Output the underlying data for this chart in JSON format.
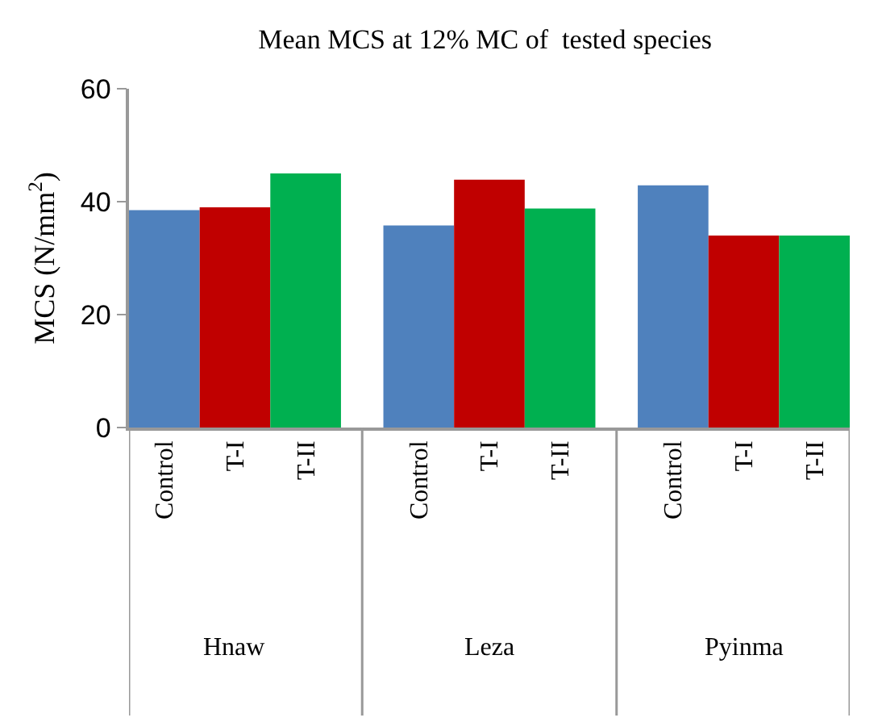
{
  "chart_data": {
    "type": "bar",
    "title": "Mean MCS at 12% MC of  tested species",
    "ylabel": "MCS (N/mm$^{2}$)",
    "categories": [
      "Control",
      "T-I",
      "T-II",
      "Control",
      "T-I",
      "T-II",
      "Control",
      "T-I",
      "T-II"
    ],
    "annotations": [
      "Hnaw",
      "Leza",
      "Pyinma"
    ],
    "values": [
      38.5,
      39,
      45,
      35.8,
      43.9,
      38.8,
      42.9,
      34,
      34
    ],
    "colors": [
      "#4f81bd",
      "#c00000",
      "#00b050",
      "#4f81bd",
      "#c00000",
      "#00b050",
      "#4f81bd",
      "#c00000",
      "#00b050"
    ],
    "ylim": [
      0,
      60
    ],
    "yticks": [
      0,
      20,
      40,
      60
    ],
    "grid": false
  }
}
